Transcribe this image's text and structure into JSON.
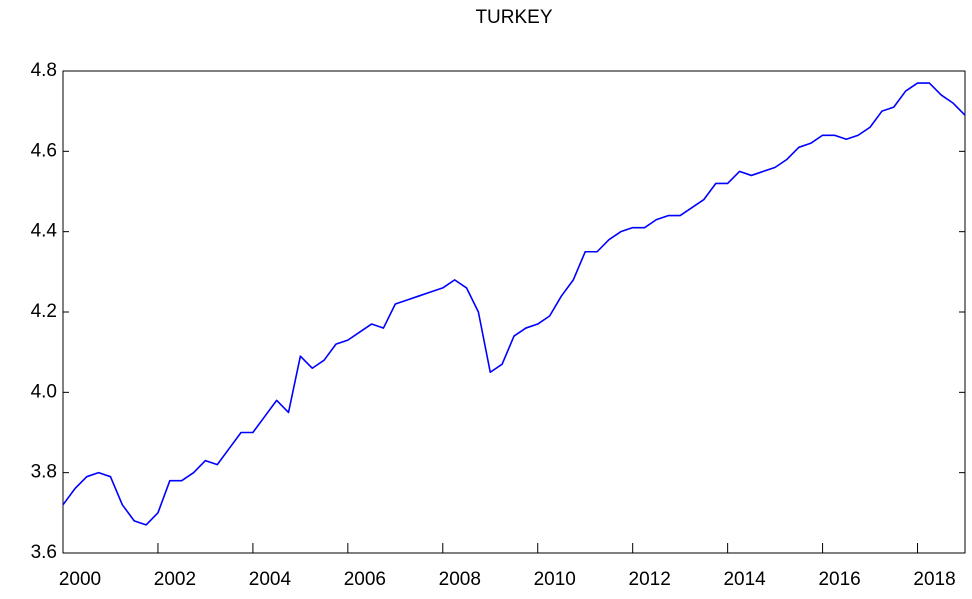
{
  "chart_data": {
    "type": "line",
    "title": "TURKEY",
    "x": [
      2000,
      2000.25,
      2000.5,
      2000.75,
      2001,
      2001.25,
      2001.5,
      2001.75,
      2002,
      2002.25,
      2002.5,
      2002.75,
      2003,
      2003.25,
      2003.5,
      2003.75,
      2004,
      2004.25,
      2004.5,
      2004.75,
      2005,
      2005.25,
      2005.5,
      2005.75,
      2006,
      2006.25,
      2006.5,
      2006.75,
      2007,
      2007.25,
      2007.5,
      2007.75,
      2008,
      2008.25,
      2008.5,
      2008.75,
      2009,
      2009.25,
      2009.5,
      2009.75,
      2010,
      2010.25,
      2010.5,
      2010.75,
      2011,
      2011.25,
      2011.5,
      2011.75,
      2012,
      2012.25,
      2012.5,
      2012.75,
      2013,
      2013.25,
      2013.5,
      2013.75,
      2014,
      2014.25,
      2014.5,
      2014.75,
      2015,
      2015.25,
      2015.5,
      2015.75,
      2016,
      2016.25,
      2016.5,
      2016.75,
      2017,
      2017.25,
      2017.5,
      2017.75,
      2018,
      2018.25,
      2018.5,
      2018.75,
      2019
    ],
    "series": [
      {
        "name": "TURKEY",
        "color": "#0000ff",
        "values": [
          3.72,
          3.76,
          3.79,
          3.8,
          3.79,
          3.72,
          3.68,
          3.67,
          3.7,
          3.78,
          3.78,
          3.8,
          3.83,
          3.82,
          3.86,
          3.9,
          3.9,
          3.94,
          3.98,
          3.95,
          4.09,
          4.06,
          4.08,
          4.12,
          4.13,
          4.15,
          4.17,
          4.16,
          4.22,
          4.23,
          4.24,
          4.25,
          4.26,
          4.28,
          4.26,
          4.2,
          4.05,
          4.07,
          4.14,
          4.16,
          4.17,
          4.19,
          4.24,
          4.28,
          4.35,
          4.35,
          4.38,
          4.4,
          4.41,
          4.41,
          4.43,
          4.44,
          4.44,
          4.46,
          4.48,
          4.52,
          4.52,
          4.55,
          4.54,
          4.55,
          4.56,
          4.58,
          4.61,
          4.62,
          4.64,
          4.64,
          4.63,
          4.64,
          4.66,
          4.7,
          4.71,
          4.75,
          4.77,
          4.77,
          4.74,
          4.72,
          4.69
        ]
      }
    ],
    "xlim": [
      2000,
      2019
    ],
    "xticks": [
      2000,
      2002,
      2004,
      2006,
      2008,
      2010,
      2012,
      2014,
      2016,
      2018
    ],
    "ylim": [
      3.6,
      4.8
    ],
    "yticks": [
      {
        "value": 3.6,
        "label": "3.6"
      },
      {
        "value": 3.8,
        "label": "3.8"
      },
      {
        "value": 4.0,
        "label": "4.0"
      },
      {
        "value": 4.2,
        "label": "4.2"
      },
      {
        "value": 4.4,
        "label": "4.4"
      },
      {
        "value": 4.6,
        "label": "4.6"
      },
      {
        "value": 4.8,
        "label": "4.8"
      }
    ],
    "grid": false
  }
}
